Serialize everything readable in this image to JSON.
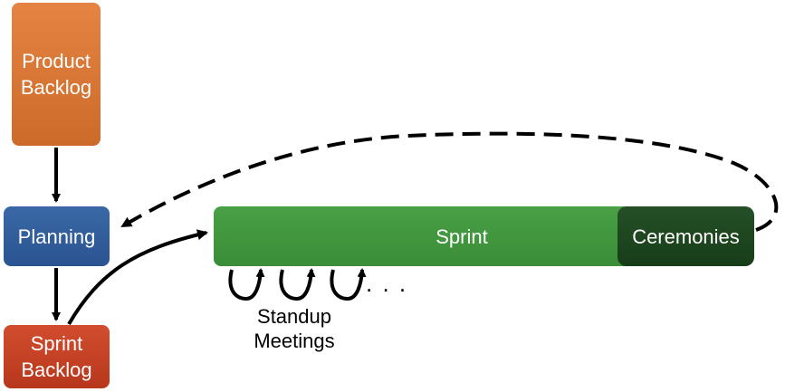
{
  "boxes": {
    "product_backlog": "Product\nBacklog",
    "planning": "Planning",
    "sprint_backlog": "Sprint\nBacklog",
    "sprint": "Sprint",
    "ceremonies": "Ceremonies"
  },
  "labels": {
    "standup_meetings": "Standup\nMeetings",
    "ellipsis": ". . ."
  },
  "colors": {
    "product_backlog": "#d97634",
    "planning": "#2f5a9a",
    "sprint_backlog": "#c13f22",
    "sprint": "#40953d",
    "ceremonies": "#1d461f",
    "arrow": "#000000"
  }
}
